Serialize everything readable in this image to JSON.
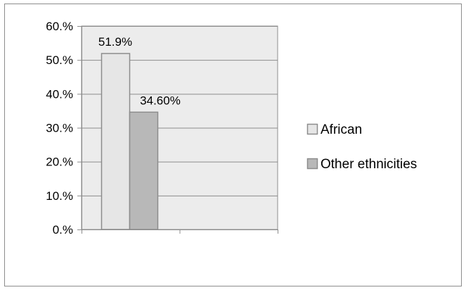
{
  "chart_data": {
    "type": "bar",
    "categories": [
      ""
    ],
    "series": [
      {
        "name": "African",
        "values": [
          51.9
        ],
        "label": "51.9%",
        "color": "#e6e6e6"
      },
      {
        "name": "Other ethnicities",
        "values": [
          34.6
        ],
        "label": "34.60%",
        "color": "#b8b8b8"
      }
    ],
    "ylim": [
      0,
      60
    ],
    "ytick_values": [
      0,
      10,
      20,
      30,
      40,
      50,
      60
    ],
    "ytick_labels": [
      "0.%",
      "10.%",
      "20.%",
      "30.%",
      "40.%",
      "50.%",
      "60.%"
    ],
    "x_category_count": 2,
    "grid": true,
    "legend_position": "right",
    "plot_background": "#ececec",
    "gridline_color": "#8c8c8c",
    "bar_border_color": "#8c8c8c"
  }
}
